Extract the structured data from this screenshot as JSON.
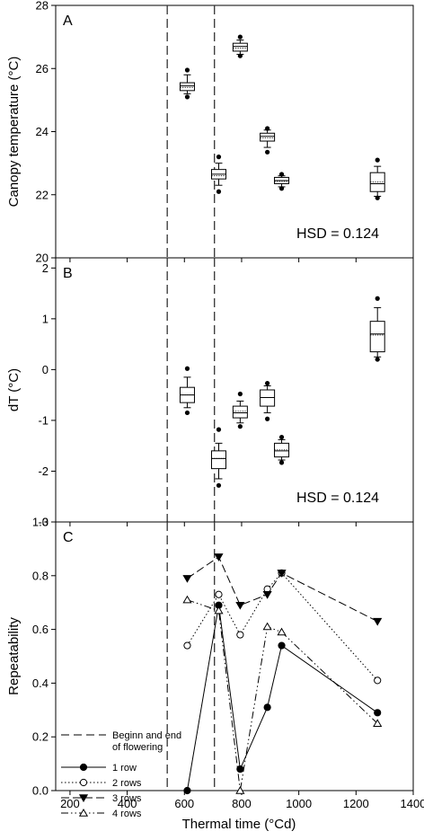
{
  "figure": {
    "xlabel": "Thermal time (°Cd)",
    "x_ticks": [
      200,
      400,
      600,
      800,
      1000,
      1200,
      1400
    ],
    "xlim": [
      150,
      1400
    ],
    "flowering_lines_x": [
      540,
      705
    ]
  },
  "chart_data": [
    {
      "panel": "A",
      "type": "box",
      "ylabel": "Canopy temperature (°C)",
      "ylim": [
        20,
        28
      ],
      "y_ticks": [
        20,
        22,
        24,
        26,
        28
      ],
      "annotation": "HSD = 0.124",
      "boxes": [
        {
          "x": 610,
          "q1": 25.3,
          "median": 25.45,
          "mean": 25.4,
          "q3": 25.55,
          "whisker_low": 25.2,
          "whisker_high": 25.8,
          "outliers": [
            25.1,
            25.95
          ]
        },
        {
          "x": 720,
          "q1": 22.5,
          "median": 22.65,
          "mean": 22.6,
          "q3": 22.8,
          "whisker_low": 22.3,
          "whisker_high": 23.0,
          "outliers": [
            22.1,
            23.2
          ]
        },
        {
          "x": 795,
          "q1": 26.55,
          "median": 26.7,
          "mean": 26.65,
          "q3": 26.8,
          "whisker_low": 26.45,
          "whisker_high": 26.9,
          "outliers": [
            26.4,
            27.0
          ]
        },
        {
          "x": 890,
          "q1": 23.7,
          "median": 23.85,
          "mean": 23.8,
          "q3": 23.95,
          "whisker_low": 23.5,
          "whisker_high": 24.05,
          "outliers": [
            23.35,
            24.1
          ]
        },
        {
          "x": 940,
          "q1": 22.35,
          "median": 22.45,
          "mean": 22.42,
          "q3": 22.55,
          "whisker_low": 22.25,
          "whisker_high": 22.6,
          "outliers": [
            22.2,
            22.65
          ]
        },
        {
          "x": 1275,
          "q1": 22.1,
          "median": 22.35,
          "mean": 22.4,
          "q3": 22.7,
          "whisker_low": 21.95,
          "whisker_high": 22.9,
          "outliers": [
            21.9,
            23.1
          ]
        }
      ]
    },
    {
      "panel": "B",
      "type": "box",
      "ylabel": "dT (°C)",
      "ylim": [
        -3,
        2.2
      ],
      "y_ticks": [
        -3,
        -2,
        -1,
        0,
        1,
        2
      ],
      "annotation": "HSD = 0.124",
      "boxes": [
        {
          "x": 610,
          "q1": -0.65,
          "median": -0.5,
          "mean": -0.5,
          "q3": -0.35,
          "whisker_low": -0.75,
          "whisker_high": -0.15,
          "outliers": [
            -0.85,
            0.02
          ]
        },
        {
          "x": 720,
          "q1": -1.95,
          "median": -1.75,
          "mean": -1.75,
          "q3": -1.6,
          "whisker_low": -2.15,
          "whisker_high": -1.45,
          "outliers": [
            -2.28,
            -1.18
          ]
        },
        {
          "x": 795,
          "q1": -0.95,
          "median": -0.85,
          "mean": -0.82,
          "q3": -0.72,
          "whisker_low": -1.05,
          "whisker_high": -0.62,
          "outliers": [
            -1.12,
            -0.48
          ]
        },
        {
          "x": 890,
          "q1": -0.72,
          "median": -0.55,
          "mean": -0.55,
          "q3": -0.4,
          "whisker_low": -0.85,
          "whisker_high": -0.32,
          "outliers": [
            -0.97,
            -0.27
          ]
        },
        {
          "x": 940,
          "q1": -1.72,
          "median": -1.6,
          "mean": -1.58,
          "q3": -1.45,
          "whisker_low": -1.78,
          "whisker_high": -1.38,
          "outliers": [
            -1.83,
            -1.33
          ]
        },
        {
          "x": 1275,
          "q1": 0.35,
          "median": 0.7,
          "mean": 0.68,
          "q3": 0.95,
          "whisker_low": 0.25,
          "whisker_high": 1.22,
          "outliers": [
            0.2,
            1.4
          ]
        }
      ]
    },
    {
      "panel": "C",
      "type": "line",
      "ylabel": "Repeatability",
      "ylim": [
        0,
        1.0
      ],
      "y_ticks": [
        0.0,
        0.2,
        0.4,
        0.6,
        0.8,
        1.0
      ],
      "legend": {
        "placement": "lower-left",
        "entries": [
          {
            "label": "Beginn and end",
            "label2": "of flowering",
            "style": "dashed-vline"
          },
          {
            "label": "1 row",
            "style": "solid",
            "marker": "filled-circle"
          },
          {
            "label": "2 rows",
            "style": "dotted",
            "marker": "open-circle"
          },
          {
            "label": "3 rows",
            "style": "dashed",
            "marker": "filled-triangle-down"
          },
          {
            "label": "4 rows",
            "style": "dashdotdot",
            "marker": "open-triangle-up"
          }
        ]
      },
      "x": [
        610,
        720,
        795,
        890,
        940,
        1275
      ],
      "series": [
        {
          "name": "1 row",
          "values": [
            0.0,
            0.69,
            0.08,
            0.31,
            0.54,
            0.29
          ]
        },
        {
          "name": "2 rows",
          "values": [
            0.54,
            0.73,
            0.58,
            0.75,
            0.81,
            0.41
          ]
        },
        {
          "name": "3 rows",
          "values": [
            0.79,
            0.87,
            0.69,
            0.73,
            0.81,
            0.63
          ]
        },
        {
          "name": "4 rows",
          "values": [
            0.71,
            0.67,
            0.0,
            0.61,
            0.59,
            0.25
          ]
        }
      ]
    }
  ]
}
